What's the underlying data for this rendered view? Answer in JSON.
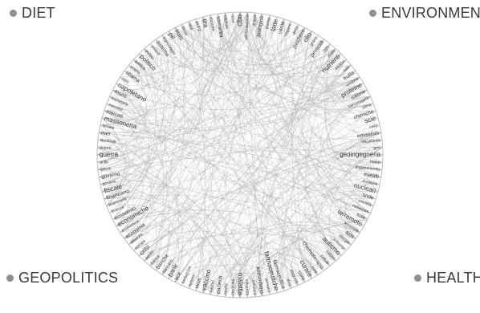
{
  "legend": {
    "diet": "DIET",
    "environment": "ENVIRONMENT",
    "geopolitics": "GEOPOLITICS",
    "health": "HEALTH"
  },
  "colors": {
    "background": "#ffffff",
    "edge": "#9a9a9a",
    "text": "#333333",
    "legend_dot": "#8f8f8f"
  },
  "nodes": [
    "cibo",
    "alimentazione",
    "acqua",
    "biologico",
    "glutine",
    "latte",
    "carne",
    "vegano",
    "dieta",
    "zucchero",
    "olio",
    "grano",
    "pesticidi",
    "ogm",
    "mais",
    "nutrienti",
    "additivi",
    "sale",
    "frutta",
    "verdura",
    "proteine",
    "calorie",
    "cancerogeni",
    "clima",
    "chimiche",
    "scie",
    "cielo",
    "emissioni",
    "fukushima",
    "geo",
    "geoingegneria",
    "haarp",
    "inquinamento",
    "metalli",
    "nucleare",
    "nucleari",
    "onde",
    "pianeta",
    "radiazioni",
    "sole",
    "terremoto",
    "terremoti",
    "aids",
    "allergie",
    "anticorpi",
    "autismo",
    "batteri",
    "cellule",
    "chemioterapia",
    "cura",
    "curare",
    "cure",
    "diagnosi",
    "dosi",
    "farmaceutica",
    "farmaceutiche",
    "farmaco",
    "immunitario",
    "infezioni",
    "influenza",
    "malattia",
    "medicina",
    "medici",
    "pazienti",
    "vaccini",
    "vaccino",
    "virus",
    "tumore",
    "berlusconi",
    "bce",
    "bank",
    "bancario",
    "banche",
    "banca",
    "debito",
    "crisi",
    "europa",
    "dittatura",
    "economia",
    "economica",
    "economiche",
    "economici",
    "finanza",
    "finanziaria",
    "finanziario",
    "fiscale",
    "governi",
    "governo",
    "grecia",
    "grillo",
    "guerra",
    "guerre",
    "illuminati",
    "iran",
    "israele",
    "massoneria",
    "mercati",
    "mercato",
    "monetaria",
    "monti",
    "napoletano",
    "nato",
    "obama",
    "potere",
    "politica",
    "politico",
    "politici",
    "potenti",
    "sistema",
    "signoraggio",
    "pil",
    "stato",
    "tasse",
    "usa",
    "euro",
    "lira",
    "moneta",
    "sovranita",
    "capitale",
    "renzi"
  ]
}
